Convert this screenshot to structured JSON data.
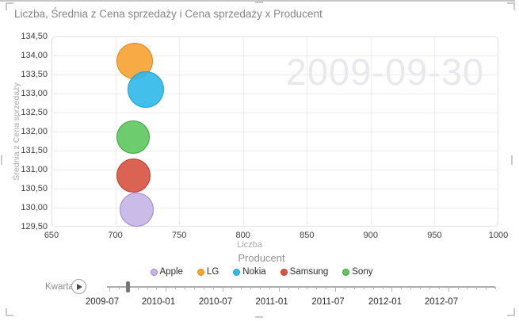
{
  "title": "Liczba, Średnia z Cena sprzedaży i Cena sprzedaży x Producent",
  "watermark": "2009-09-30",
  "chart_data": {
    "type": "scatter",
    "subtype": "bubble",
    "title": "Liczba, Średnia z Cena sprzedaży i Cena sprzedaży x Producent",
    "xlabel": "Liczba",
    "ylabel": "Średnia z Cena sprzedaży",
    "xlim": [
      650,
      1000
    ],
    "ylim": [
      129.5,
      134.5
    ],
    "x_ticks": [
      "650",
      "700",
      "750",
      "800",
      "850",
      "900",
      "950",
      "1000"
    ],
    "y_ticks": [
      "134,50",
      "134,00",
      "133,50",
      "133,00",
      "132,50",
      "132,00",
      "131,50",
      "131,00",
      "130,50",
      "130,00",
      "129,50"
    ],
    "grid": true,
    "legend_position": "bottom",
    "watermark_date": "2009-09-30",
    "series": [
      {
        "name": "Apple",
        "liczba": 717,
        "srednia_cena": 129.95,
        "fill": "#c6b4e6",
        "border": "#9d88cb",
        "radius_px": 21.5
      },
      {
        "name": "LG",
        "liczba": 715,
        "srednia_cena": 133.85,
        "fill": "#f7a233",
        "border": "#de8b20",
        "radius_px": 23
      },
      {
        "name": "Nokia",
        "liczba": 724,
        "srednia_cena": 133.1,
        "fill": "#2fb9e8",
        "border": "#22a0d0",
        "radius_px": 23
      },
      {
        "name": "Samsung",
        "liczba": 714,
        "srednia_cena": 130.85,
        "fill": "#d75342",
        "border": "#c03a2b",
        "radius_px": 21.5
      },
      {
        "name": "Sony",
        "liczba": 714,
        "srednia_cena": 131.85,
        "fill": "#5ec75f",
        "border": "#3fa043",
        "radius_px": 21
      }
    ]
  },
  "legend": {
    "title": "Producent",
    "items": [
      {
        "label": "Apple",
        "color": "#c6b4e6",
        "border": "#9d88cb"
      },
      {
        "label": "LG",
        "color": "#f7a233",
        "border": "#de8b20"
      },
      {
        "label": "Nokia",
        "color": "#2fb9e8",
        "border": "#22a0d0"
      },
      {
        "label": "Samsung",
        "color": "#d75342",
        "border": "#c03a2b"
      },
      {
        "label": "Sony",
        "color": "#5ec75f",
        "border": "#3fa043"
      }
    ]
  },
  "timeline": {
    "label": "Kwartał",
    "play_icon": "play",
    "current_date": "2009-09-30",
    "current_tick_index": 2,
    "tick_labels": [
      "2009-07",
      "2010-01",
      "2010-07",
      "2011-01",
      "2011-07",
      "2012-01",
      "2012-07"
    ]
  }
}
